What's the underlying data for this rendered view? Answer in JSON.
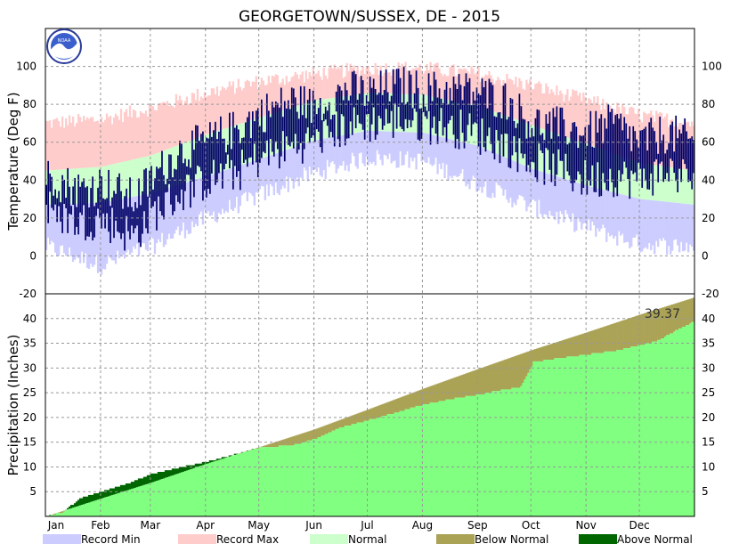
{
  "chart_data": [
    {
      "type": "bar",
      "panel": "temperature",
      "title": "GEORGETOWN/SUSSEX, DE - 2015",
      "ylabel": "Temperature (Deg F)",
      "ylim": [
        -20,
        120
      ],
      "yticks": [
        -20,
        0,
        20,
        40,
        60,
        80,
        100
      ],
      "x_months": [
        "Jan",
        "Feb",
        "Mar",
        "Apr",
        "May",
        "Jun",
        "Jul",
        "Aug",
        "Sep",
        "Oct",
        "Nov",
        "Dec"
      ],
      "month_start_doy": [
        1,
        32,
        60,
        91,
        121,
        152,
        182,
        213,
        244,
        274,
        305,
        335
      ],
      "days": 365,
      "grid": true,
      "climatology_anchors": {
        "doy": [
          1,
          32,
          60,
          91,
          121,
          152,
          182,
          213,
          244,
          274,
          305,
          335,
          365
        ],
        "record_max": [
          70,
          72,
          78,
          86,
          92,
          96,
          99,
          99,
          96,
          90,
          82,
          74,
          70
        ],
        "normal_max": [
          45,
          47,
          53,
          64,
          73,
          82,
          86,
          85,
          79,
          69,
          59,
          49,
          45
        ],
        "normal_min": [
          27,
          28,
          33,
          42,
          51,
          61,
          66,
          65,
          58,
          46,
          37,
          30,
          27
        ],
        "record_min": [
          5,
          -5,
          5,
          20,
          32,
          44,
          52,
          50,
          38,
          26,
          15,
          6,
          5
        ]
      },
      "observed_anchors": {
        "doy": [
          1,
          20,
          32,
          50,
          60,
          75,
          91,
          110,
          121,
          140,
          152,
          170,
          182,
          200,
          213,
          230,
          244,
          260,
          274,
          290,
          305,
          320,
          335,
          350,
          365
        ],
        "high": [
          42,
          35,
          38,
          30,
          40,
          55,
          60,
          68,
          75,
          82,
          78,
          88,
          86,
          90,
          87,
          88,
          86,
          82,
          70,
          68,
          65,
          70,
          60,
          65,
          60
        ],
        "low": [
          25,
          18,
          20,
          10,
          22,
          32,
          40,
          45,
          52,
          58,
          62,
          68,
          70,
          72,
          70,
          68,
          64,
          58,
          50,
          45,
          40,
          42,
          40,
          45,
          40
        ]
      },
      "series": [
        {
          "name": "Record Min",
          "color": "#ccccff"
        },
        {
          "name": "Record Max",
          "color": "#ffcccc"
        },
        {
          "name": "Normal",
          "color": "#ccffcc"
        },
        {
          "name": "Observed",
          "color": "#000066"
        }
      ]
    },
    {
      "type": "area",
      "panel": "precipitation",
      "ylabel": "Precipitation (Inches)",
      "ylim": [
        0,
        45
      ],
      "yticks": [
        5,
        10,
        15,
        20,
        25,
        30,
        35,
        40
      ],
      "x_months": [
        "Jan",
        "Feb",
        "Mar",
        "Apr",
        "May",
        "Jun",
        "Jul",
        "Aug",
        "Sep",
        "Oct",
        "Nov",
        "Dec"
      ],
      "grid": true,
      "normal_cumulative_anchors": {
        "doy": [
          1,
          32,
          60,
          91,
          121,
          152,
          182,
          213,
          244,
          274,
          305,
          335,
          365
        ],
        "value": [
          0,
          3.6,
          6.8,
          10.6,
          14.0,
          17.6,
          21.6,
          25.8,
          29.8,
          33.6,
          37.2,
          40.8,
          44.2
        ]
      },
      "observed_cumulative_anchors": {
        "doy": [
          1,
          10,
          20,
          32,
          45,
          60,
          75,
          91,
          110,
          121,
          140,
          152,
          165,
          182,
          200,
          213,
          230,
          244,
          255,
          268,
          275,
          290,
          305,
          320,
          335,
          345,
          355,
          365
        ],
        "value": [
          0,
          0.8,
          3.6,
          5.0,
          6.4,
          8.5,
          9.8,
          11.0,
          12.8,
          13.9,
          14.4,
          15.6,
          17.8,
          19.4,
          21.2,
          22.6,
          23.8,
          24.6,
          25.4,
          26.2,
          31.2,
          32.0,
          32.7,
          33.4,
          34.6,
          35.5,
          37.5,
          39.37
        ]
      },
      "total_label": "39.37",
      "series": [
        {
          "name": "Below Normal",
          "color": "#aaa255"
        },
        {
          "name": "Above Normal",
          "color": "#006600"
        },
        {
          "name": "Observed",
          "color": "#80ff80"
        }
      ]
    }
  ],
  "legend": [
    {
      "label": "Record Min",
      "color": "#ccccff"
    },
    {
      "label": "Record Max",
      "color": "#ffcccc"
    },
    {
      "label": "Normal",
      "color": "#ccffcc"
    },
    {
      "label": "Below Normal",
      "color": "#aaa255"
    },
    {
      "label": "Above Normal",
      "color": "#006600"
    }
  ],
  "logo": {
    "text": "NOAA",
    "icon": "noaa-logo-icon"
  }
}
